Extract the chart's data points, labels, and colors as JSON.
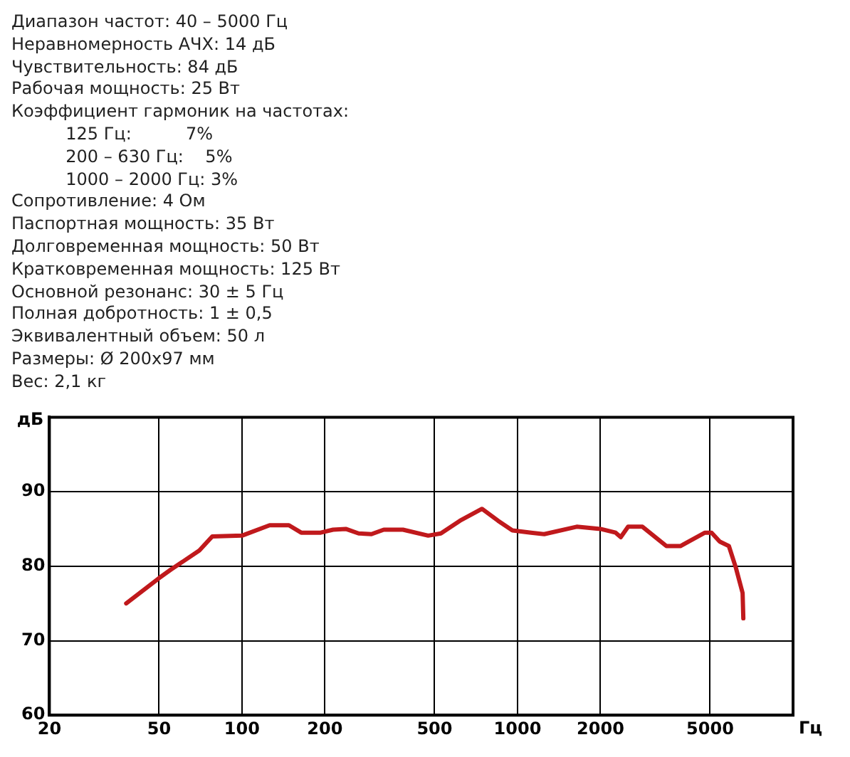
{
  "chart_data": {
    "type": "line",
    "xlabel": "Гц",
    "ylabel": "дБ",
    "annotations": [
      "Диапазон частот: 40 – 5000 Гц",
      "Неравномерность АЧХ: 14 дБ",
      "Чувствительность: 84 дБ",
      "Рабочая мощность: 25 Вт",
      "Коэффициент гармоник на частотах:",
      "          125 Гц:          7%",
      "          200 – 630 Гц:    5%",
      "          1000 – 2000 Гц: 3%",
      "Сопротивление: 4 Ом",
      "Паспортная мощность: 35 Вт",
      "Долговременная мощность: 50 Вт",
      "Кратковременная мощность: 125 Вт",
      "Основной резонанс: 30 ± 5 Гц",
      "Полная добротность: 1 ± 0,5",
      "Эквивалентный объем: 50 л",
      "Размеры: Ø 200x97 мм",
      "Вес: 2,1 кг"
    ],
    "x": [
      38,
      50,
      55,
      70,
      78,
      100,
      126,
      148,
      164,
      193,
      214,
      238,
      265,
      295,
      327,
      384,
      474,
      527,
      618,
      743,
      850,
      958,
      1120,
      1250,
      1640,
      2000,
      2270,
      2370,
      2520,
      2840,
      3470,
      3900,
      4790,
      5060,
      5420,
      5850,
      6200,
      6560,
      6600
    ],
    "series": [
      {
        "color": "#c0191c",
        "values": [
          75,
          78.4,
          79.5,
          82.1,
          84,
          84.1,
          85.5,
          85.5,
          84.5,
          84.5,
          84.9,
          85,
          84.4,
          84.3,
          84.9,
          84.9,
          84.1,
          84.4,
          86.1,
          87.7,
          86.1,
          84.8,
          84.5,
          84.3,
          85.3,
          85,
          84.5,
          83.9,
          85.3,
          85.3,
          82.7,
          82.7,
          84.5,
          84.5,
          83.3,
          82.7,
          79.8,
          76.4,
          73
        ]
      }
    ],
    "log": "x",
    "xlim": [
      20,
      10000
    ],
    "xticks": [
      20,
      50,
      100,
      200,
      500,
      1000,
      2000,
      5000
    ],
    "ylim": [
      60,
      100
    ],
    "yticks": [
      60,
      70,
      80,
      90
    ],
    "grid": true,
    "legend": false,
    "marker": "none",
    "line_style": "solid"
  }
}
